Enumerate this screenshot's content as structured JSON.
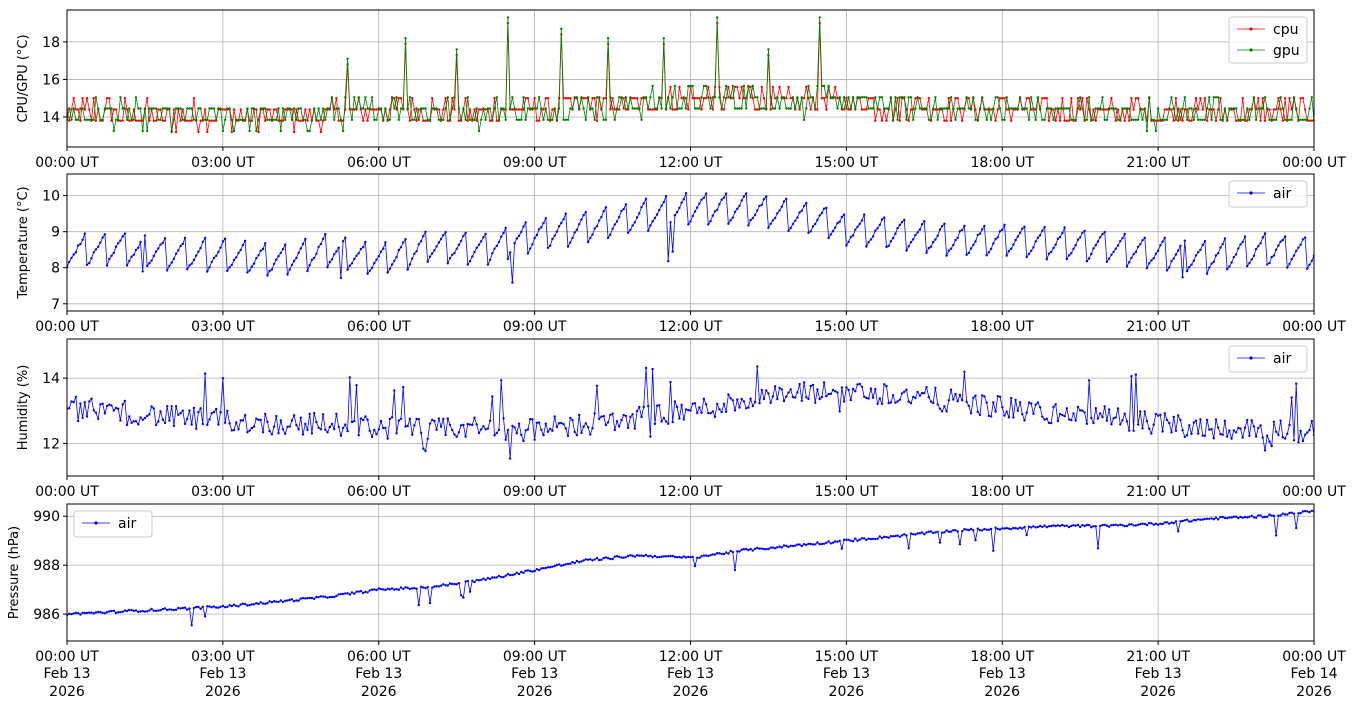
{
  "chart_data": [
    {
      "type": "line",
      "ylabel": "CPU/GPU (°C)",
      "ylim": [
        12.4,
        19.7
      ],
      "yticks": [
        14,
        16,
        18
      ],
      "xlim": [
        0,
        24
      ],
      "x_unit": "hours UT, Feb 13 2026",
      "xtick_labels": [
        "00:00 UT",
        "03:00 UT",
        "06:00 UT",
        "09:00 UT",
        "12:00 UT",
        "15:00 UT",
        "18:00 UT",
        "21:00 UT",
        "00:00 UT"
      ],
      "grid": true,
      "legend": "top-right",
      "series": [
        {
          "name": "cpu",
          "color": "#ff0000",
          "x": [
            0,
            0.5,
            1,
            1.5,
            2,
            2.5,
            3,
            3.5,
            4,
            4.5,
            5,
            5.5,
            6,
            6.5,
            7,
            7.5,
            8,
            8.5,
            9,
            9.5,
            10,
            10.5,
            11,
            11.5,
            12,
            12.5,
            13,
            13.5,
            14,
            14.5,
            15,
            15.5,
            16,
            16.5,
            17,
            17.5,
            18,
            18.5,
            19,
            19.5,
            20,
            20.5,
            21,
            21.5,
            22,
            22.5,
            23,
            23.5,
            24
          ],
          "values": [
            14.1,
            14.3,
            14.2,
            14.1,
            14.0,
            14.1,
            14.2,
            14.0,
            13.9,
            14.1,
            14.2,
            14.3,
            14.4,
            14.6,
            14.4,
            14.3,
            14.2,
            14.5,
            14.3,
            14.4,
            14.7,
            14.6,
            14.8,
            14.9,
            15.0,
            14.9,
            15.1,
            14.9,
            14.8,
            15.0,
            14.8,
            14.7,
            14.6,
            14.7,
            14.5,
            14.6,
            14.4,
            14.5,
            14.3,
            14.4,
            14.2,
            14.3,
            14.2,
            14.4,
            14.3,
            14.2,
            14.3,
            14.2,
            14.3
          ]
        },
        {
          "name": "gpu",
          "color": "#008000",
          "x": [
            0,
            0.5,
            1,
            1.5,
            2,
            2.5,
            3,
            3.5,
            4,
            4.5,
            5,
            5.5,
            6,
            6.5,
            7,
            7.5,
            8,
            8.5,
            9,
            9.5,
            10,
            10.5,
            11,
            11.5,
            12,
            12.5,
            13,
            13.5,
            14,
            14.5,
            15,
            15.5,
            16,
            16.5,
            17,
            17.5,
            18,
            18.5,
            19,
            19.5,
            20,
            20.5,
            21,
            21.5,
            22,
            22.5,
            23,
            23.5,
            24
          ],
          "values": [
            14.0,
            14.2,
            14.1,
            14.0,
            13.9,
            14.0,
            14.1,
            13.9,
            13.8,
            14.0,
            14.1,
            14.2,
            14.3,
            14.5,
            14.3,
            14.2,
            14.1,
            14.4,
            14.2,
            14.3,
            14.6,
            14.5,
            14.7,
            14.8,
            14.9,
            14.8,
            15.0,
            14.8,
            14.7,
            14.9,
            14.7,
            14.6,
            14.5,
            14.6,
            14.4,
            14.5,
            14.3,
            14.4,
            14.2,
            14.3,
            14.1,
            14.2,
            14.1,
            14.3,
            14.2,
            14.1,
            14.2,
            14.1,
            14.2
          ]
        }
      ],
      "spikes": [
        {
          "x": 5.4,
          "value": 17.1
        },
        {
          "x": 6.5,
          "value": 18.2
        },
        {
          "x": 7.5,
          "value": 17.6
        },
        {
          "x": 8.5,
          "value": 19.3
        },
        {
          "x": 9.5,
          "value": 18.7
        },
        {
          "x": 10.4,
          "value": 18.2
        },
        {
          "x": 11.5,
          "value": 18.2
        },
        {
          "x": 12.5,
          "value": 19.3
        },
        {
          "x": 13.5,
          "value": 17.6
        },
        {
          "x": 14.5,
          "value": 19.3
        }
      ]
    },
    {
      "type": "line",
      "ylabel": "Temperature (°C)",
      "ylim": [
        6.8,
        10.6
      ],
      "yticks": [
        7,
        8,
        9,
        10
      ],
      "xlim": [
        0,
        24
      ],
      "xtick_labels": [
        "00:00 UT",
        "03:00 UT",
        "06:00 UT",
        "09:00 UT",
        "12:00 UT",
        "15:00 UT",
        "18:00 UT",
        "21:00 UT",
        "00:00 UT"
      ],
      "grid": true,
      "legend": "top-right",
      "series": [
        {
          "name": "air",
          "color": "#0000ff",
          "x": [
            0,
            1,
            2,
            3,
            4,
            5,
            6,
            7,
            8,
            9,
            10,
            11,
            12,
            13,
            14,
            15,
            16,
            17,
            18,
            19,
            20,
            21,
            22,
            23,
            24
          ],
          "values": [
            8.5,
            8.6,
            8.4,
            8.4,
            8.2,
            8.5,
            8.2,
            8.6,
            8.5,
            8.9,
            9.1,
            9.4,
            9.6,
            9.6,
            9.4,
            9.1,
            9.0,
            8.8,
            8.8,
            8.7,
            8.6,
            8.4,
            8.3,
            8.5,
            8.4
          ]
        }
      ],
      "oscillation_amplitude": 0.6,
      "cycles_per_hour": 2.6
    },
    {
      "type": "line",
      "ylabel": "Humidity (%)",
      "ylim": [
        11.0,
        15.2
      ],
      "yticks": [
        12,
        14
      ],
      "xlim": [
        0,
        24
      ],
      "xtick_labels": [
        "00:00 UT",
        "03:00 UT",
        "06:00 UT",
        "09:00 UT",
        "12:00 UT",
        "15:00 UT",
        "18:00 UT",
        "21:00 UT",
        "00:00 UT"
      ],
      "grid": true,
      "legend": "top-right",
      "series": [
        {
          "name": "air",
          "color": "#0000ff",
          "x": [
            0,
            1,
            2,
            3,
            4,
            5,
            6,
            7,
            8,
            9,
            10,
            11,
            12,
            13,
            14,
            15,
            16,
            17,
            18,
            19,
            20,
            21,
            22,
            23,
            24
          ],
          "values": [
            13.1,
            13.0,
            12.8,
            12.7,
            12.6,
            12.6,
            12.5,
            12.4,
            12.5,
            12.4,
            12.6,
            12.8,
            13.0,
            13.3,
            13.5,
            13.6,
            13.5,
            13.3,
            13.1,
            12.9,
            12.8,
            12.6,
            12.5,
            12.4,
            12.4
          ]
        }
      ],
      "noise_amplitude": 0.35
    },
    {
      "type": "line",
      "ylabel": "Pressure (hPa)",
      "ylim": [
        984.9,
        990.5
      ],
      "yticks": [
        986,
        988,
        990
      ],
      "xlim": [
        0,
        24
      ],
      "xtick_labels": [
        "00:00 UT",
        "03:00 UT",
        "06:00 UT",
        "09:00 UT",
        "12:00 UT",
        "15:00 UT",
        "18:00 UT",
        "21:00 UT",
        "00:00 UT"
      ],
      "xtick_date_labels": [
        "Feb 13",
        "Feb 13",
        "Feb 13",
        "Feb 13",
        "Feb 13",
        "Feb 13",
        "Feb 13",
        "Feb 13",
        "Feb 14"
      ],
      "xtick_year_labels": [
        "2026",
        "2026",
        "2026",
        "2026",
        "2026",
        "2026",
        "2026",
        "2026",
        "2026"
      ],
      "grid": true,
      "legend": "top-left",
      "series": [
        {
          "name": "air",
          "color": "#0000ff",
          "x": [
            0,
            1,
            2,
            3,
            4,
            5,
            6,
            7,
            8,
            9,
            10,
            11,
            12,
            13,
            14,
            15,
            16,
            17,
            18,
            19,
            20,
            21,
            22,
            23,
            24
          ],
          "values": [
            986.0,
            986.1,
            986.2,
            986.3,
            986.5,
            986.7,
            987.0,
            987.1,
            987.4,
            987.8,
            988.2,
            988.4,
            988.3,
            988.6,
            988.8,
            989.0,
            989.2,
            989.4,
            989.5,
            989.6,
            989.6,
            989.7,
            989.9,
            990.0,
            990.2
          ]
        }
      ]
    }
  ]
}
